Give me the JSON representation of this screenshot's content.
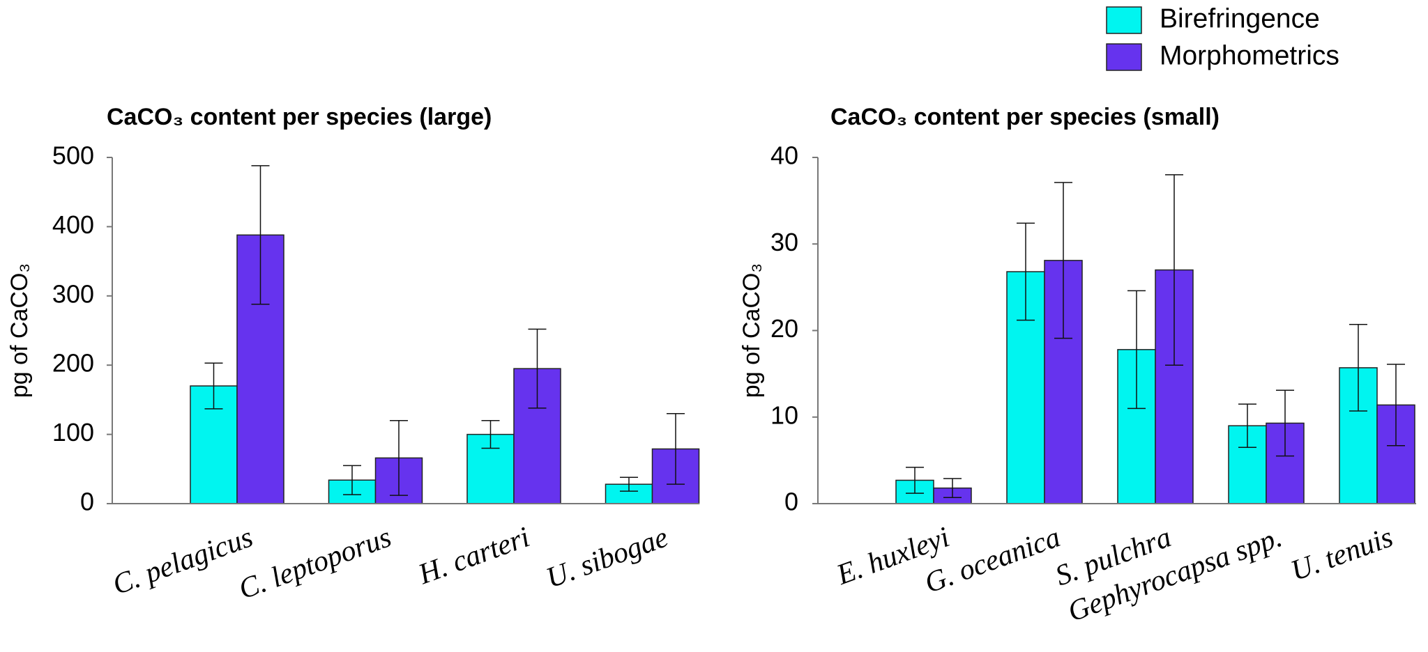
{
  "chart_data": [
    {
      "type": "bar",
      "title": "CaCO₃ content per species (large)",
      "y_label": "pg of CaCO₃",
      "categories": [
        "C. pelagicus",
        "C. leptoporus",
        "H. carteri",
        "U. sibogae"
      ],
      "series": [
        {
          "name": "Birefringence",
          "color": "#00f5f0",
          "values": [
            170,
            34,
            100,
            28
          ],
          "errors": [
            33,
            21,
            20,
            10
          ]
        },
        {
          "name": "Morphometrics",
          "color": "#6633ee",
          "values": [
            388,
            66,
            195,
            79
          ],
          "errors": [
            100,
            54,
            57,
            51
          ]
        }
      ],
      "ylim": [
        0,
        500
      ],
      "yticks": [
        0,
        100,
        200,
        300,
        400,
        500
      ]
    },
    {
      "type": "bar",
      "title": "CaCO₃ content per species (small)",
      "y_label": "pg of CaCO₃",
      "categories": [
        "E. huxleyi",
        "G. oceanica",
        "S. pulchra",
        "Gephyrocapsa spp.",
        "U. tenuis"
      ],
      "series": [
        {
          "color": "#00f5f0",
          "values": [
            2.7,
            26.8,
            17.8,
            9.0,
            15.7
          ],
          "errors": [
            1.5,
            5.6,
            6.8,
            2.5,
            5.0
          ]
        },
        {
          "color": "#6633ee",
          "values": [
            1.8,
            28.1,
            27.0,
            9.3,
            11.4
          ],
          "errors": [
            1.1,
            9.0,
            11.0,
            3.8,
            4.7
          ]
        }
      ],
      "ylim": [
        0,
        40
      ],
      "yticks": [
        0,
        10,
        20,
        30,
        40
      ]
    }
  ]
}
